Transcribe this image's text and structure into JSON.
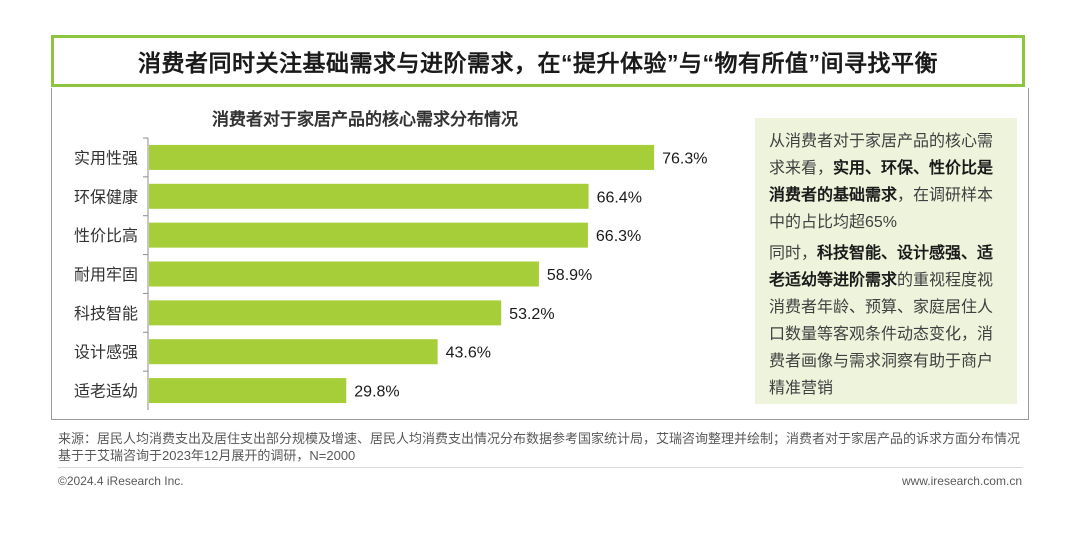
{
  "headline": "消费者同时关注基础需求与进阶需求，在“提升体验”与“物有所值”间寻找平衡",
  "chart_data": {
    "type": "bar",
    "orientation": "horizontal",
    "title": "消费者对于家居产品的核心需求分布情况",
    "categories": [
      "实用性强",
      "环保健康",
      "性价比高",
      "耐用牢固",
      "科技智能",
      "设计感强",
      "适老适幼"
    ],
    "values": [
      76.3,
      66.4,
      66.3,
      58.9,
      53.2,
      43.6,
      29.8
    ],
    "value_labels": [
      "76.3%",
      "66.4%",
      "66.3%",
      "58.9%",
      "53.2%",
      "43.6%",
      "29.8%"
    ],
    "unit": "%",
    "xlim": [
      0,
      100
    ],
    "grid": false,
    "bar_color": "#a6ce39"
  },
  "insight": {
    "p1_lead": "从消费者对于家居产品的核心需求来看，",
    "p1_bold": "实用、环保、性价比是消费者的基础需求",
    "p1_tail": "，在调研样本中的占比均超65%",
    "p2_lead": "同时，",
    "p2_bold": "科技智能、设计感强、适老适幼等进阶需求",
    "p2_tail": "的重视程度视消费者年龄、预算、家庭居住人口数量等客观条件动态变化，消费者画像与需求洞察有助于商户精准营销"
  },
  "footer": {
    "source": "来源：居民人均消费支出及居住支出部分规模及增速、居民人均消费支出情况分布数据参考国家统计局，艾瑞咨询整理并绘制；消费者对于家居产品的诉求方面分布情况基于于艾瑞咨询于2023年12月展开的调研，N=2000",
    "copyright": "©2024.4 iResearch Inc.",
    "site": "www.iresearch.com.cn"
  },
  "colors": {
    "accent_border": "#8cc63f",
    "insight_bg": "#eef4dc"
  }
}
